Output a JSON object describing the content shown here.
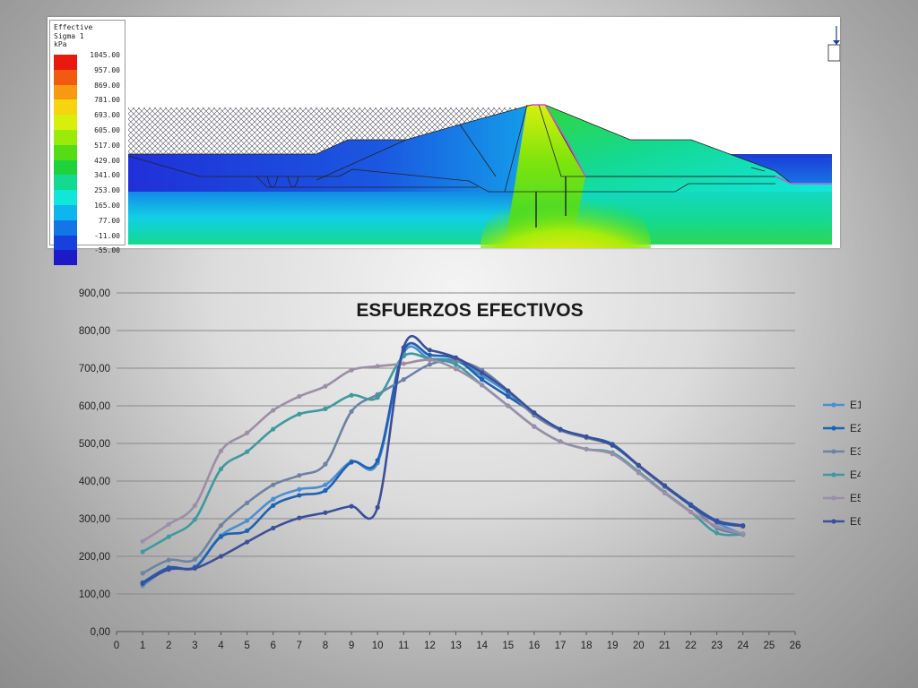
{
  "contour": {
    "legend_title_lines": [
      "Effective",
      "Sigma 1",
      "kPa"
    ],
    "legend_levels": [
      {
        "label": "1045.00",
        "color": "#e8190f"
      },
      {
        "label": "957.00",
        "color": "#f25a10"
      },
      {
        "label": "869.00",
        "color": "#f79a12"
      },
      {
        "label": "781.00",
        "color": "#f6d40f"
      },
      {
        "label": "693.00",
        "color": "#d7f00b"
      },
      {
        "label": "605.00",
        "color": "#9aea0a"
      },
      {
        "label": "517.00",
        "color": "#55dc14"
      },
      {
        "label": "429.00",
        "color": "#1fd23a"
      },
      {
        "label": "341.00",
        "color": "#14d990"
      },
      {
        "label": "253.00",
        "color": "#12e6d8"
      },
      {
        "label": "165.00",
        "color": "#0fb6ee"
      },
      {
        "label": "77.00",
        "color": "#1375e6"
      },
      {
        "label": "-11.00",
        "color": "#1740dc"
      },
      {
        "label": "-55.00",
        "color": "#1b19c8"
      }
    ]
  },
  "chart_data": {
    "type": "line",
    "title": "ESFUERZOS EFECTIVOS",
    "xlim": [
      0,
      26
    ],
    "ylim": [
      0,
      900
    ],
    "x_ticks": [
      "0",
      "1",
      "2",
      "3",
      "4",
      "5",
      "6",
      "7",
      "8",
      "9",
      "10",
      "11",
      "12",
      "13",
      "14",
      "15",
      "16",
      "17",
      "18",
      "19",
      "20",
      "21",
      "22",
      "23",
      "24",
      "25",
      "26"
    ],
    "y_ticks": [
      "0,00",
      "100,00",
      "200,00",
      "300,00",
      "400,00",
      "500,00",
      "600,00",
      "700,00",
      "800,00",
      "900,00"
    ],
    "grid": true,
    "legend_position": "right",
    "series": [
      {
        "name": "E1",
        "color": "#4a8fd1",
        "points": [
          [
            1,
            122
          ],
          [
            2,
            168
          ],
          [
            3,
            172
          ],
          [
            4,
            255
          ],
          [
            5,
            295
          ],
          [
            6,
            352
          ],
          [
            7,
            378
          ],
          [
            8,
            390
          ],
          [
            9,
            452
          ],
          [
            10,
            448
          ],
          [
            11,
            740
          ],
          [
            12,
            725
          ],
          [
            13,
            720
          ],
          [
            14,
            680
          ],
          [
            15,
            635
          ],
          [
            16,
            580
          ],
          [
            17,
            538
          ],
          [
            18,
            518
          ],
          [
            19,
            498
          ],
          [
            20,
            442
          ],
          [
            21,
            388
          ],
          [
            22,
            338
          ],
          [
            23,
            290
          ],
          [
            24,
            258
          ]
        ]
      },
      {
        "name": "E2",
        "color": "#1d62b5",
        "points": [
          [
            1,
            130
          ],
          [
            2,
            170
          ],
          [
            3,
            170
          ],
          [
            4,
            252
          ],
          [
            5,
            268
          ],
          [
            6,
            335
          ],
          [
            7,
            362
          ],
          [
            8,
            375
          ],
          [
            9,
            450
          ],
          [
            10,
            455
          ],
          [
            11,
            748
          ],
          [
            12,
            735
          ],
          [
            13,
            725
          ],
          [
            14,
            670
          ],
          [
            15,
            625
          ],
          [
            16,
            580
          ],
          [
            17,
            538
          ],
          [
            18,
            518
          ],
          [
            19,
            498
          ],
          [
            20,
            442
          ],
          [
            21,
            388
          ],
          [
            22,
            338
          ],
          [
            23,
            295
          ],
          [
            24,
            282
          ]
        ]
      },
      {
        "name": "E3",
        "color": "#6e82a4",
        "points": [
          [
            1,
            155
          ],
          [
            2,
            190
          ],
          [
            3,
            192
          ],
          [
            4,
            282
          ],
          [
            5,
            342
          ],
          [
            6,
            390
          ],
          [
            7,
            415
          ],
          [
            8,
            445
          ],
          [
            9,
            585
          ],
          [
            10,
            630
          ],
          [
            11,
            670
          ],
          [
            12,
            710
          ],
          [
            13,
            720
          ],
          [
            14,
            695
          ],
          [
            15,
            640
          ],
          [
            16,
            575
          ],
          [
            17,
            535
          ],
          [
            18,
            515
          ],
          [
            19,
            495
          ],
          [
            20,
            440
          ],
          [
            21,
            385
          ],
          [
            22,
            335
          ],
          [
            23,
            275
          ],
          [
            24,
            260
          ]
        ]
      },
      {
        "name": "E4",
        "color": "#3e9aa0",
        "points": [
          [
            1,
            212
          ],
          [
            2,
            252
          ],
          [
            3,
            298
          ],
          [
            4,
            432
          ],
          [
            5,
            478
          ],
          [
            6,
            538
          ],
          [
            7,
            578
          ],
          [
            8,
            592
          ],
          [
            9,
            628
          ],
          [
            10,
            622
          ],
          [
            11,
            732
          ],
          [
            12,
            725
          ],
          [
            13,
            710
          ],
          [
            14,
            655
          ],
          [
            15,
            600
          ],
          [
            16,
            545
          ],
          [
            17,
            505
          ],
          [
            18,
            485
          ],
          [
            19,
            475
          ],
          [
            20,
            425
          ],
          [
            21,
            370
          ],
          [
            22,
            318
          ],
          [
            23,
            262
          ],
          [
            24,
            258
          ]
        ]
      },
      {
        "name": "E5",
        "color": "#9c8ea6",
        "points": [
          [
            1,
            240
          ],
          [
            2,
            285
          ],
          [
            3,
            335
          ],
          [
            4,
            480
          ],
          [
            5,
            528
          ],
          [
            6,
            588
          ],
          [
            7,
            625
          ],
          [
            8,
            652
          ],
          [
            9,
            695
          ],
          [
            10,
            705
          ],
          [
            11,
            712
          ],
          [
            12,
            722
          ],
          [
            13,
            698
          ],
          [
            14,
            655
          ],
          [
            15,
            600
          ],
          [
            16,
            545
          ],
          [
            17,
            505
          ],
          [
            18,
            485
          ],
          [
            19,
            472
          ],
          [
            20,
            422
          ],
          [
            21,
            368
          ],
          [
            22,
            318
          ],
          [
            23,
            280
          ],
          [
            24,
            260
          ]
        ]
      },
      {
        "name": "E6",
        "color": "#3b4f9a",
        "points": [
          [
            1,
            128
          ],
          [
            2,
            165
          ],
          [
            3,
            168
          ],
          [
            4,
            200
          ],
          [
            5,
            238
          ],
          [
            6,
            275
          ],
          [
            7,
            302
          ],
          [
            8,
            316
          ],
          [
            9,
            333
          ],
          [
            10,
            330
          ],
          [
            11,
            755
          ],
          [
            12,
            748
          ],
          [
            13,
            728
          ],
          [
            14,
            688
          ],
          [
            15,
            640
          ],
          [
            16,
            582
          ],
          [
            17,
            538
          ],
          [
            18,
            518
          ],
          [
            19,
            495
          ],
          [
            20,
            442
          ],
          [
            21,
            388
          ],
          [
            22,
            335
          ],
          [
            23,
            292
          ],
          [
            24,
            280
          ]
        ]
      }
    ]
  }
}
